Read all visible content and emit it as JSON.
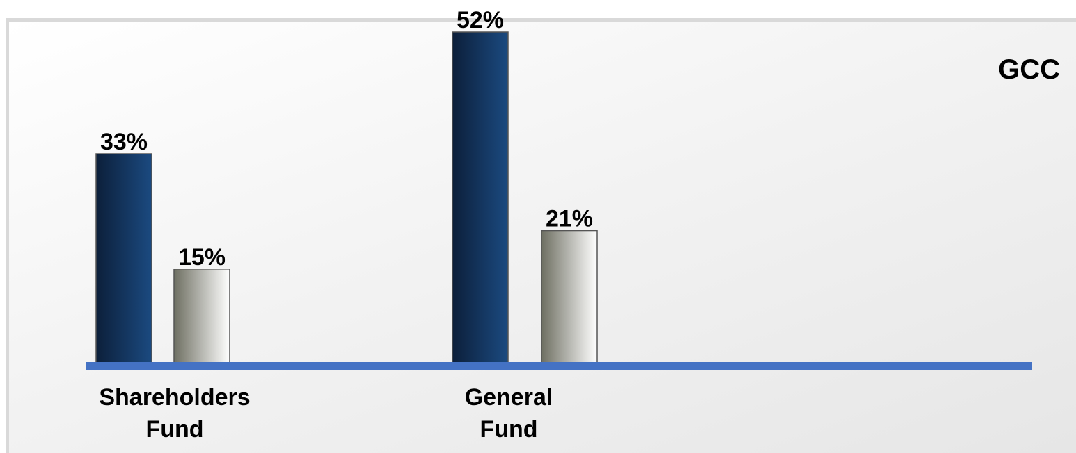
{
  "corner_label": "GCC",
  "colors": {
    "series_dark_start": "#0c1f3a",
    "series_dark_end": "#1b4a80",
    "series_light_start": "#6e6f62",
    "series_light_end": "#ffffff",
    "baseline": "#4472c4"
  },
  "chart_data": {
    "type": "bar",
    "categories": [
      [
        "Shareholders",
        "Fund"
      ],
      [
        "General",
        "Fund"
      ]
    ],
    "series": [
      {
        "values": [
          33,
          52
        ],
        "labels": [
          "33%",
          "52%"
        ]
      },
      {
        "values": [
          15,
          21
        ],
        "labels": [
          "15%",
          "21%"
        ]
      }
    ],
    "title": "",
    "xlabel": "",
    "ylabel": "",
    "ylim": [
      0,
      52
    ],
    "grid": false,
    "legend": "none"
  }
}
